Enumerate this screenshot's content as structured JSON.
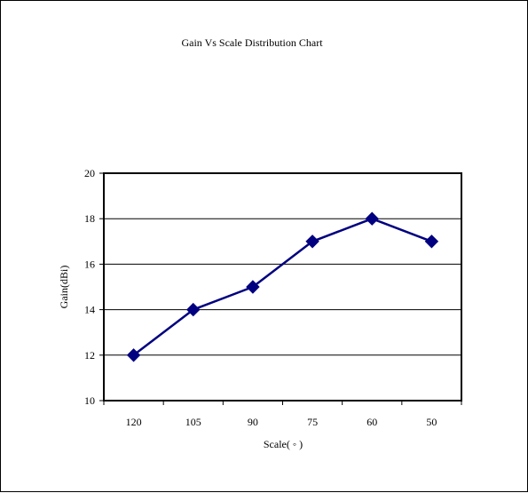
{
  "chart_data": {
    "type": "line",
    "title": "Gain Vs Scale Distribution Chart",
    "xlabel": "Scale( ◦ )",
    "ylabel": "Gain(dBi)",
    "categories": [
      "120",
      "105",
      "90",
      "75",
      "60",
      "50"
    ],
    "series": [
      {
        "values": [
          12,
          14,
          15,
          17,
          18,
          17
        ]
      }
    ],
    "ylim": [
      10,
      20
    ],
    "yticks": [
      10,
      12,
      14,
      16,
      18,
      20
    ],
    "grid": true,
    "legend": "none",
    "colors": {
      "line": "#000080",
      "marker": "#000080",
      "grid": "#000000"
    }
  }
}
